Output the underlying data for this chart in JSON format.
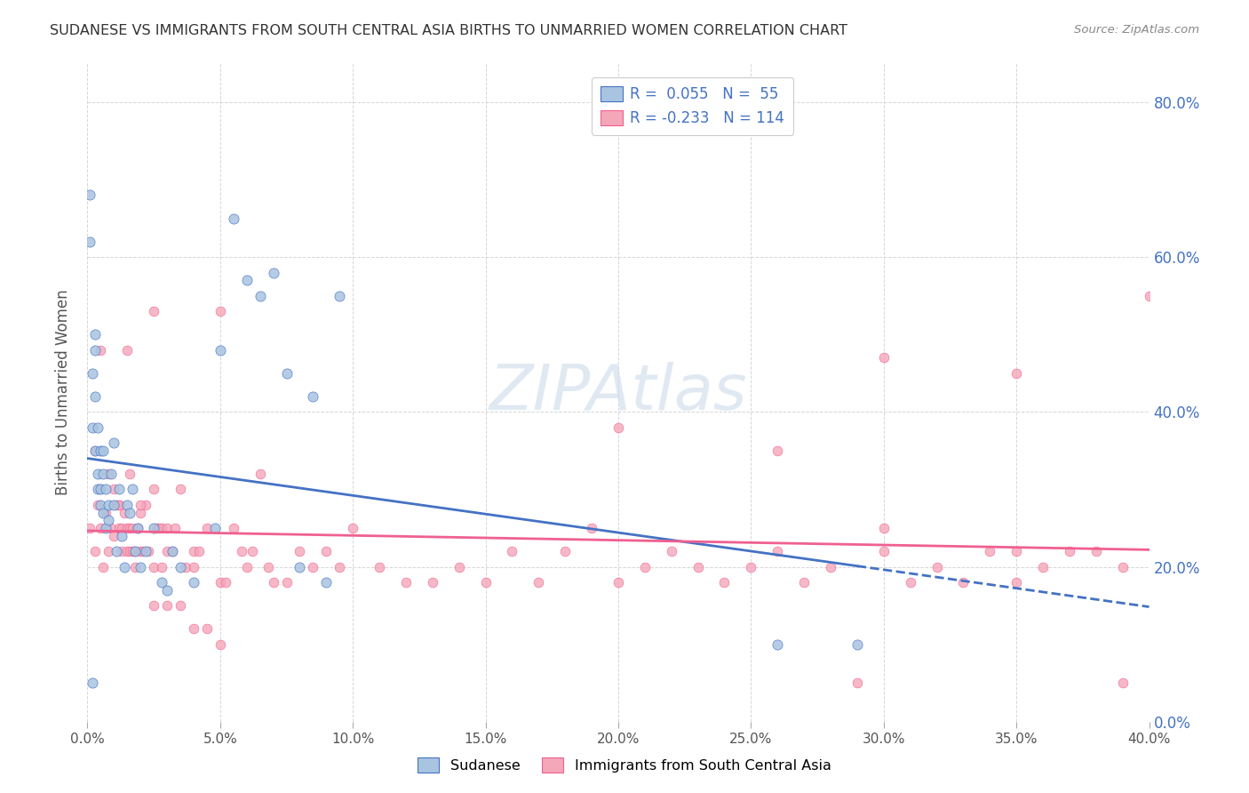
{
  "title": "SUDANESE VS IMMIGRANTS FROM SOUTH CENTRAL ASIA BIRTHS TO UNMARRIED WOMEN CORRELATION CHART",
  "source": "Source: ZipAtlas.com",
  "ylabel": "Births to Unmarried Women",
  "legend_label1": "Sudanese",
  "legend_label2": "Immigrants from South Central Asia",
  "R1": 0.055,
  "N1": 55,
  "R2": -0.233,
  "N2": 114,
  "scatter1_color": "#a8c4e0",
  "scatter2_color": "#f4a7b9",
  "line1_color": "#4472c4",
  "line2_color": "#f06090",
  "watermark": "ZIPAtlas",
  "watermark_color": "#c8d8e8",
  "xmin": 0.0,
  "xmax": 0.4,
  "ymin": 0.0,
  "ymax": 0.85,
  "ytick_color": "#4472c4",
  "background_color": "#ffffff",
  "grid_color": "#cccccc",
  "title_color": "#333333",
  "scatter1_x": [
    0.001,
    0.001,
    0.002,
    0.002,
    0.002,
    0.003,
    0.003,
    0.003,
    0.003,
    0.004,
    0.004,
    0.004,
    0.005,
    0.005,
    0.005,
    0.006,
    0.006,
    0.006,
    0.007,
    0.007,
    0.008,
    0.008,
    0.009,
    0.01,
    0.01,
    0.011,
    0.012,
    0.013,
    0.014,
    0.015,
    0.016,
    0.017,
    0.018,
    0.019,
    0.02,
    0.022,
    0.025,
    0.028,
    0.03,
    0.032,
    0.035,
    0.04,
    0.048,
    0.05,
    0.055,
    0.06,
    0.065,
    0.07,
    0.075,
    0.08,
    0.085,
    0.09,
    0.095,
    0.26,
    0.29
  ],
  "scatter1_y": [
    0.62,
    0.68,
    0.05,
    0.38,
    0.45,
    0.5,
    0.48,
    0.42,
    0.35,
    0.38,
    0.32,
    0.3,
    0.35,
    0.3,
    0.28,
    0.32,
    0.27,
    0.35,
    0.3,
    0.25,
    0.28,
    0.26,
    0.32,
    0.28,
    0.36,
    0.22,
    0.3,
    0.24,
    0.2,
    0.28,
    0.27,
    0.3,
    0.22,
    0.25,
    0.2,
    0.22,
    0.25,
    0.18,
    0.17,
    0.22,
    0.2,
    0.18,
    0.25,
    0.48,
    0.65,
    0.57,
    0.55,
    0.58,
    0.45,
    0.2,
    0.42,
    0.18,
    0.55,
    0.1,
    0.1
  ],
  "scatter2_x": [
    0.001,
    0.003,
    0.004,
    0.005,
    0.006,
    0.007,
    0.008,
    0.009,
    0.01,
    0.01,
    0.011,
    0.012,
    0.012,
    0.013,
    0.013,
    0.014,
    0.015,
    0.015,
    0.016,
    0.016,
    0.017,
    0.017,
    0.018,
    0.018,
    0.019,
    0.02,
    0.02,
    0.021,
    0.022,
    0.023,
    0.025,
    0.025,
    0.026,
    0.027,
    0.028,
    0.028,
    0.03,
    0.03,
    0.032,
    0.033,
    0.035,
    0.037,
    0.04,
    0.04,
    0.042,
    0.045,
    0.05,
    0.052,
    0.055,
    0.058,
    0.06,
    0.062,
    0.065,
    0.068,
    0.07,
    0.075,
    0.08,
    0.085,
    0.09,
    0.095,
    0.1,
    0.11,
    0.12,
    0.13,
    0.14,
    0.15,
    0.16,
    0.17,
    0.18,
    0.19,
    0.2,
    0.21,
    0.22,
    0.23,
    0.24,
    0.25,
    0.26,
    0.27,
    0.28,
    0.29,
    0.3,
    0.31,
    0.32,
    0.33,
    0.34,
    0.35,
    0.36,
    0.37,
    0.38,
    0.39,
    0.003,
    0.005,
    0.008,
    0.012,
    0.016,
    0.02,
    0.025,
    0.03,
    0.035,
    0.04,
    0.045,
    0.05,
    0.2,
    0.26,
    0.3,
    0.35,
    0.39,
    0.005,
    0.015,
    0.025,
    0.05,
    0.3,
    0.35,
    0.4
  ],
  "scatter2_y": [
    0.25,
    0.22,
    0.28,
    0.25,
    0.2,
    0.27,
    0.22,
    0.25,
    0.3,
    0.24,
    0.28,
    0.25,
    0.28,
    0.25,
    0.22,
    0.27,
    0.22,
    0.25,
    0.25,
    0.22,
    0.22,
    0.25,
    0.22,
    0.2,
    0.25,
    0.22,
    0.27,
    0.22,
    0.28,
    0.22,
    0.2,
    0.3,
    0.25,
    0.25,
    0.2,
    0.25,
    0.22,
    0.25,
    0.22,
    0.25,
    0.3,
    0.2,
    0.2,
    0.22,
    0.22,
    0.25,
    0.18,
    0.18,
    0.25,
    0.22,
    0.2,
    0.22,
    0.32,
    0.2,
    0.18,
    0.18,
    0.22,
    0.2,
    0.22,
    0.2,
    0.25,
    0.2,
    0.18,
    0.18,
    0.2,
    0.18,
    0.22,
    0.18,
    0.22,
    0.25,
    0.18,
    0.2,
    0.22,
    0.2,
    0.18,
    0.2,
    0.22,
    0.18,
    0.2,
    0.05,
    0.22,
    0.18,
    0.2,
    0.18,
    0.22,
    0.18,
    0.2,
    0.22,
    0.22,
    0.2,
    0.35,
    0.3,
    0.32,
    0.28,
    0.32,
    0.28,
    0.15,
    0.15,
    0.15,
    0.12,
    0.12,
    0.1,
    0.38,
    0.35,
    0.25,
    0.22,
    0.05,
    0.48,
    0.48,
    0.53,
    0.53,
    0.47,
    0.45,
    0.55
  ]
}
